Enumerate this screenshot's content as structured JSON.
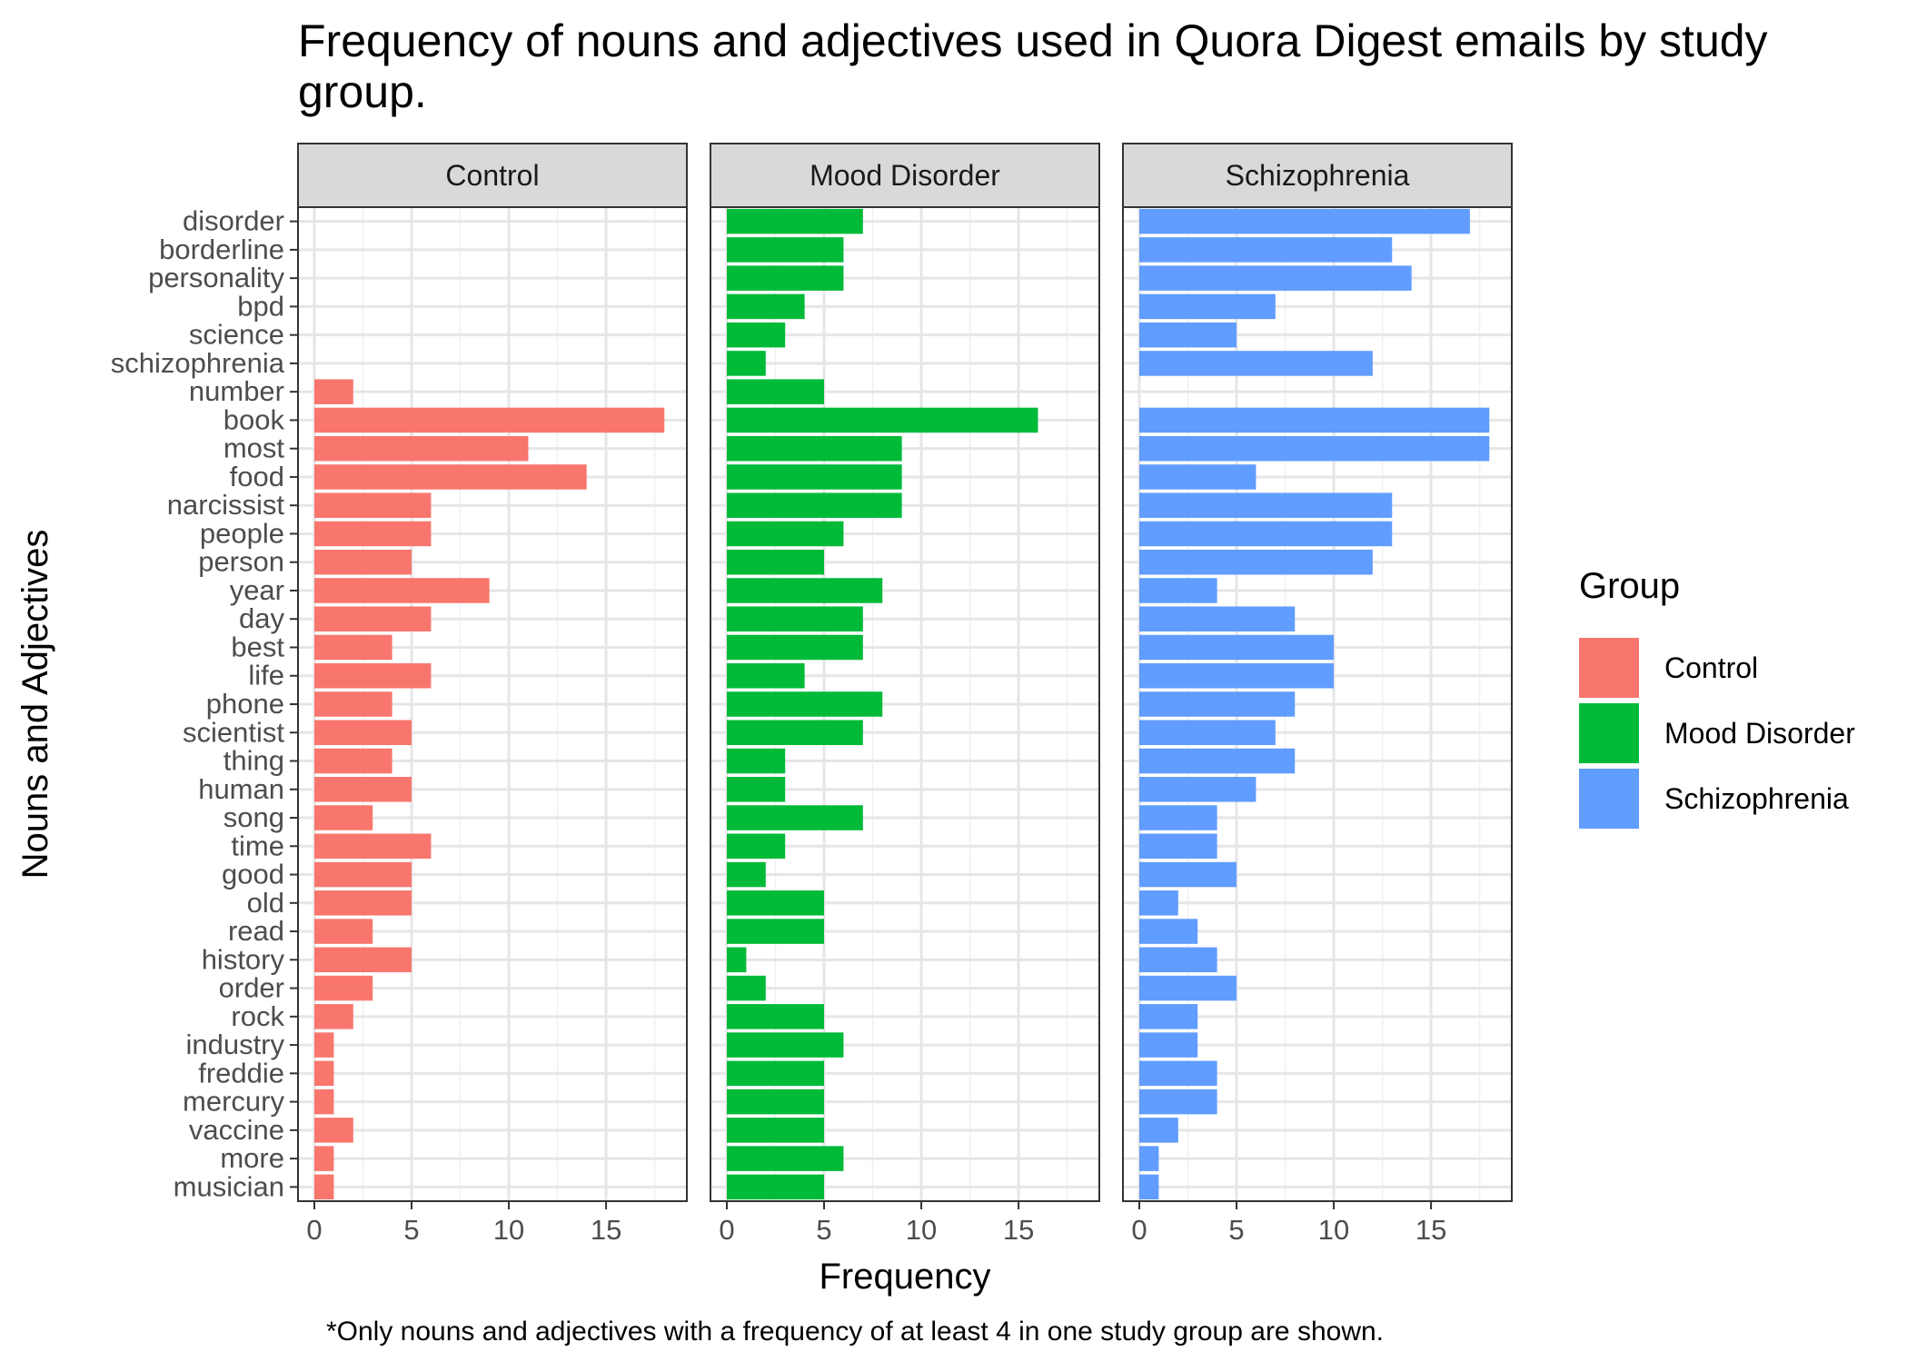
{
  "chart_data": {
    "type": "bar",
    "orientation": "horizontal",
    "title": "Frequency of nouns and adjectives used in Quora Digest emails by study group.",
    "xlabel": "Frequency",
    "ylabel": "Nouns and Adjectives",
    "caption": "*Only nouns and adjectives with a frequency of at least 4 in one study group are shown.",
    "xlim": [
      0,
      18.5
    ],
    "xticks": [
      0,
      5,
      10,
      15
    ],
    "grid": true,
    "legend": {
      "title": "Group",
      "position": "right",
      "entries": [
        {
          "label": "Control",
          "color": "#F8766D"
        },
        {
          "label": "Mood Disorder",
          "color": "#00BA38"
        },
        {
          "label": "Schizophrenia",
          "color": "#619CFF"
        }
      ]
    },
    "categories": [
      "disorder",
      "borderline",
      "personality",
      "bpd",
      "science",
      "schizophrenia",
      "number",
      "book",
      "most",
      "food",
      "narcissist",
      "people",
      "person",
      "year",
      "day",
      "best",
      "life",
      "phone",
      "scientist",
      "thing",
      "human",
      "song",
      "time",
      "good",
      "old",
      "read",
      "history",
      "order",
      "rock",
      "industry",
      "freddie",
      "mercury",
      "vaccine",
      "more",
      "musician"
    ],
    "series": [
      {
        "name": "Control",
        "color": "#F8766D",
        "values": [
          0,
          0,
          0,
          0,
          0,
          0,
          2,
          18,
          11,
          14,
          6,
          6,
          5,
          9,
          6,
          4,
          6,
          4,
          5,
          4,
          5,
          3,
          6,
          5,
          5,
          3,
          5,
          3,
          2,
          1,
          1,
          1,
          2,
          1,
          1
        ]
      },
      {
        "name": "Mood Disorder",
        "color": "#00BA38",
        "values": [
          7,
          6,
          6,
          4,
          3,
          2,
          5,
          16,
          9,
          9,
          9,
          6,
          5,
          8,
          7,
          7,
          4,
          8,
          7,
          3,
          3,
          7,
          3,
          2,
          5,
          5,
          1,
          2,
          5,
          6,
          5,
          5,
          5,
          6,
          5
        ]
      },
      {
        "name": "Schizophrenia",
        "color": "#619CFF",
        "values": [
          17,
          13,
          14,
          7,
          5,
          12,
          0,
          18,
          18,
          6,
          13,
          13,
          12,
          4,
          8,
          10,
          10,
          8,
          7,
          8,
          6,
          4,
          4,
          5,
          2,
          3,
          4,
          5,
          3,
          3,
          4,
          4,
          2,
          1,
          1
        ]
      }
    ]
  }
}
